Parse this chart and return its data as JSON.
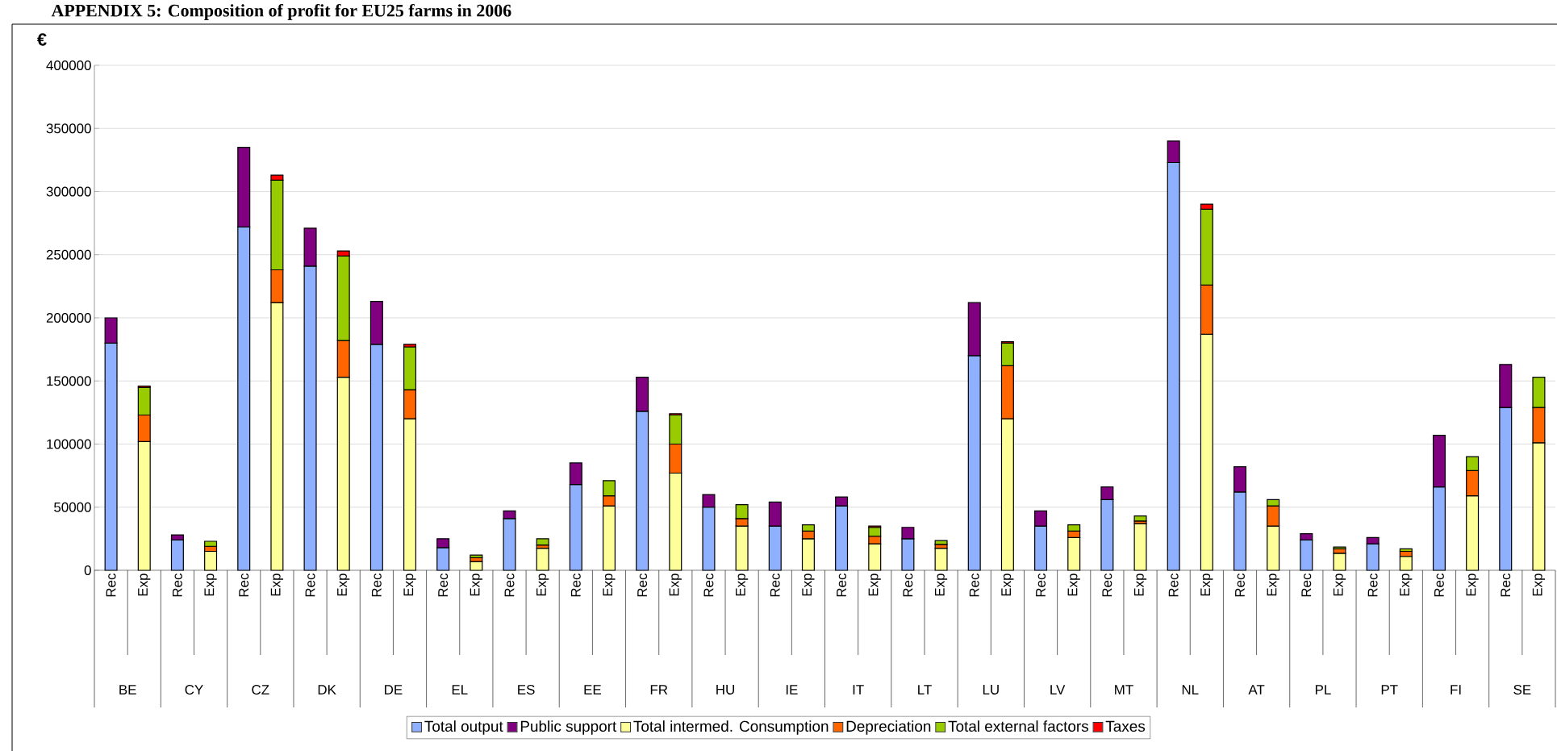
{
  "chart_data": {
    "type": "bar",
    "stacked": true,
    "title": "APPENDIX 5: Composition of profit for EU25 farms in 2006",
    "ylabel": "€",
    "categories": [
      "Rec",
      "Exp",
      "Rec",
      "Exp",
      "Rec",
      "Exp",
      "Rec",
      "Exp",
      "Rec",
      "Exp",
      "Rec",
      "Exp",
      "Rec",
      "Exp",
      "Rec",
      "Exp",
      "Rec",
      "Exp",
      "Rec",
      "Exp",
      "Rec",
      "Exp",
      "Rec",
      "Exp",
      "Rec",
      "Exp",
      "Rec",
      "Exp",
      "Rec",
      "Exp",
      "Rec",
      "Exp",
      "Rec",
      "Exp",
      "Rec",
      "Exp",
      "Rec",
      "Exp",
      "Rec",
      "Exp",
      "Rec",
      "Exp",
      "Rec",
      "Exp"
    ],
    "annotations": [
      "BE",
      "CY",
      "CZ",
      "DK",
      "DE",
      "EL",
      "ES",
      "EE",
      "FR",
      "HU",
      "IE",
      "IT",
      "LT",
      "LU",
      "LV",
      "MT",
      "NL",
      "AT",
      "PL",
      "PT",
      "FI",
      "SE"
    ],
    "series": [
      {
        "name": "Total output",
        "color": "#8fb0ff",
        "values": [
          180000,
          null,
          24000,
          null,
          272000,
          null,
          241000,
          null,
          179000,
          null,
          18000,
          null,
          41000,
          null,
          68000,
          null,
          126000,
          null,
          50000,
          null,
          35000,
          null,
          51000,
          null,
          25000,
          null,
          170000,
          null,
          35000,
          null,
          56000,
          null,
          323000,
          null,
          62000,
          null,
          24000,
          null,
          21000,
          null,
          66000,
          null,
          129000,
          null
        ]
      },
      {
        "name": "Public support",
        "color": "#800080",
        "values": [
          20000,
          null,
          4000,
          null,
          63000,
          null,
          30000,
          null,
          34000,
          null,
          7000,
          null,
          6000,
          null,
          17000,
          null,
          27000,
          null,
          10000,
          null,
          19000,
          null,
          7000,
          null,
          9000,
          null,
          42000,
          null,
          12000,
          null,
          10000,
          null,
          17000,
          null,
          20000,
          null,
          5000,
          null,
          5000,
          null,
          41000,
          null,
          34000,
          null
        ]
      },
      {
        "name": "Total intermed. Consumption",
        "color": "#ffff99",
        "values": [
          null,
          102000,
          null,
          15000,
          null,
          212000,
          null,
          153000,
          null,
          120000,
          null,
          7000,
          null,
          17500,
          null,
          51000,
          null,
          77000,
          null,
          35000,
          null,
          25000,
          null,
          21000,
          null,
          17500,
          null,
          120000,
          null,
          26000,
          null,
          37000,
          null,
          187000,
          null,
          35000,
          null,
          13500,
          null,
          11000,
          null,
          59000,
          null,
          101000
        ]
      },
      {
        "name": "Depreciation",
        "color": "#ff6600",
        "values": [
          null,
          21000,
          null,
          4000,
          null,
          26000,
          null,
          29000,
          null,
          23000,
          null,
          3000,
          null,
          2500,
          null,
          8000,
          null,
          23000,
          null,
          6000,
          null,
          6000,
          null,
          6000,
          null,
          3000,
          null,
          42000,
          null,
          5000,
          null,
          2000,
          null,
          39000,
          null,
          16000,
          null,
          3500,
          null,
          4000,
          null,
          20000,
          null,
          28000
        ]
      },
      {
        "name": "Total external factors",
        "color": "#99cc00",
        "values": [
          null,
          22000,
          null,
          4000,
          null,
          71000,
          null,
          67000,
          null,
          34000,
          null,
          2000,
          null,
          5000,
          null,
          12000,
          null,
          23000,
          null,
          11000,
          null,
          5000,
          null,
          7000,
          null,
          3000,
          null,
          18000,
          null,
          5000,
          null,
          4000,
          null,
          60000,
          null,
          5000,
          null,
          1500,
          null,
          2000,
          null,
          11000,
          null,
          24000
        ]
      },
      {
        "name": "Taxes",
        "color": "#ff0000",
        "values": [
          null,
          1000,
          null,
          null,
          null,
          4000,
          null,
          4000,
          null,
          2000,
          null,
          null,
          null,
          null,
          null,
          null,
          null,
          1000,
          null,
          null,
          null,
          null,
          null,
          1000,
          null,
          null,
          null,
          1000,
          null,
          null,
          null,
          null,
          null,
          4000,
          null,
          null,
          null,
          null,
          null,
          null,
          null,
          null,
          null,
          null
        ]
      }
    ],
    "ylim": [
      0,
      400000
    ],
    "yticks": [
      0,
      50000,
      100000,
      150000,
      200000,
      250000,
      300000,
      350000,
      400000
    ],
    "grid": "y",
    "legend": "bottom"
  }
}
